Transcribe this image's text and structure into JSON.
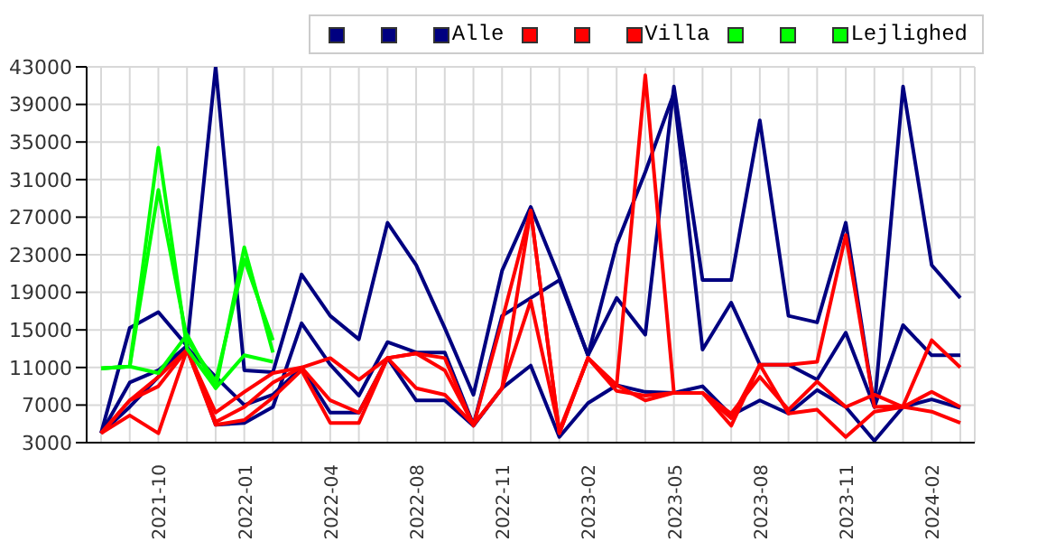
{
  "chart_data": {
    "type": "line",
    "categories": [
      null,
      null,
      "2021-10",
      null,
      null,
      "2022-01",
      null,
      null,
      "2022-04",
      null,
      null,
      "2022-08",
      null,
      null,
      "2022-11",
      null,
      null,
      "2023-02",
      null,
      null,
      "2023-05",
      null,
      null,
      "2023-08",
      null,
      null,
      "2023-11",
      null,
      null,
      "2024-02",
      null
    ],
    "series": [
      {
        "color": "#000080",
        "values": [
          4000,
          15200,
          16900,
          13300,
          43000,
          10700,
          10500,
          20900,
          16500,
          14000,
          26400,
          21900,
          15200,
          8100,
          21300,
          28100,
          20600,
          12300,
          18400,
          14500,
          40900,
          20300,
          20300,
          37300,
          16500,
          15800,
          26400,
          6800,
          40900,
          21900,
          18400
        ]
      },
      {
        "color": "#000080",
        "values": [
          4000,
          9400,
          10700,
          13300,
          4900,
          5100,
          6800,
          15700,
          11300,
          8000,
          13700,
          12600,
          12600,
          4900,
          16500,
          18400,
          20300,
          12300,
          24100,
          31800,
          40200,
          12900,
          17900,
          11300,
          11300,
          9700,
          14700,
          6800,
          15500,
          12300,
          12300
        ]
      },
      {
        "name": "Alle",
        "color": "#000080",
        "values": [
          4000,
          6800,
          10000,
          13100,
          10000,
          7000,
          8100,
          11000,
          6200,
          6200,
          12000,
          7500,
          7500,
          4800,
          8800,
          11200,
          3600,
          7200,
          9100,
          8400,
          8300,
          9000,
          5900,
          7500,
          6100,
          8600,
          6800,
          3200,
          6800,
          7600,
          6700
        ]
      },
      {
        "color": "#ff0000",
        "values": [
          4000,
          5900,
          4000,
          12900,
          4900,
          5400,
          7800,
          10700,
          5100,
          5100,
          12000,
          12500,
          10700,
          4900,
          8800,
          27700,
          4000,
          12000,
          9100,
          42100,
          8300,
          8300,
          4800,
          11300,
          6100,
          6500,
          3600,
          6300,
          6800,
          6300,
          5100
        ]
      },
      {
        "color": "#ff0000",
        "values": [
          4000,
          7500,
          10000,
          12900,
          6200,
          8400,
          10400,
          11000,
          12000,
          9700,
          12000,
          8800,
          8100,
          4900,
          8800,
          18100,
          4300,
          12000,
          9100,
          7500,
          8300,
          8300,
          5600,
          11300,
          11300,
          11600,
          25100,
          6800,
          6900,
          13900,
          11000
        ]
      },
      {
        "name": "Villa",
        "color": "#ff0000",
        "values": [
          4000,
          7500,
          9000,
          12900,
          5200,
          6800,
          9400,
          11000,
          7500,
          6200,
          12000,
          12500,
          12000,
          4800,
          16000,
          27700,
          4000,
          12000,
          8500,
          8000,
          8300,
          8300,
          6100,
          10000,
          6500,
          9500,
          6800,
          8100,
          6800,
          8400,
          6800
        ]
      },
      {
        "color": "#00ff00",
        "values": [
          10900,
          11100,
          10400,
          14500,
          8800,
          12300,
          11600,
          null,
          null,
          null,
          null,
          null,
          null,
          null,
          null,
          null,
          null,
          null,
          null,
          null,
          null,
          null,
          null,
          null,
          null,
          null,
          null,
          null,
          null,
          null,
          null
        ]
      },
      {
        "color": "#00ff00",
        "values": [
          10900,
          11100,
          34400,
          13000,
          8800,
          23800,
          12600,
          null,
          null,
          null,
          null,
          null,
          null,
          null,
          null,
          null,
          null,
          null,
          null,
          null,
          null,
          null,
          null,
          null,
          null,
          null,
          null,
          null,
          null,
          null,
          null
        ]
      },
      {
        "name": "Lejlighed",
        "color": "#00ff00",
        "values": [
          10900,
          11100,
          29900,
          14000,
          9500,
          22500,
          13900,
          null,
          null,
          null,
          null,
          null,
          null,
          null,
          null,
          null,
          null,
          null,
          null,
          null,
          null,
          null,
          null,
          null,
          null,
          null,
          null,
          null,
          null,
          null,
          null
        ]
      }
    ],
    "ylim": [
      3000,
      43000
    ],
    "yticks": [
      3000,
      7000,
      11000,
      15000,
      19000,
      23000,
      27000,
      31000,
      35000,
      39000,
      43000
    ],
    "grid": true,
    "legend": "top right",
    "marker": "none",
    "line_style": "solid"
  }
}
